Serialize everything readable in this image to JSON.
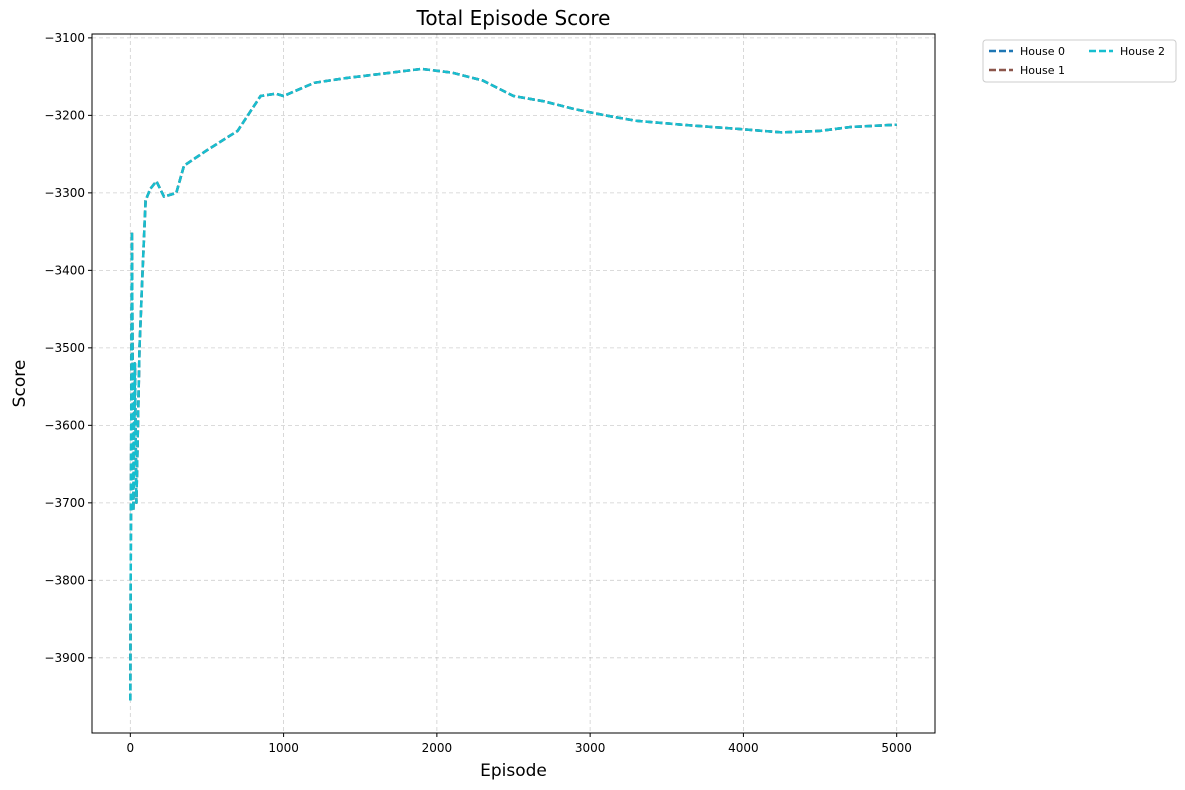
{
  "chart_data": {
    "type": "line",
    "title": "Total Episode Score",
    "xlabel": "Episode",
    "ylabel": "Score",
    "xlim": [
      -250,
      5250
    ],
    "ylim": [
      -3997,
      -3095
    ],
    "x_ticks": [
      0,
      1000,
      2000,
      3000,
      4000,
      5000
    ],
    "y_ticks": [
      -3100,
      -3200,
      -3300,
      -3400,
      -3500,
      -3600,
      -3700,
      -3800,
      -3900
    ],
    "grid": true,
    "legend_position": "outside-top-right",
    "legend_columns": 2,
    "series": [
      {
        "name": "House 0",
        "color": "#1f77b4",
        "points": [
          [
            0,
            -3955
          ],
          [
            10,
            -3350
          ],
          [
            20,
            -3710
          ],
          [
            30,
            -3520
          ],
          [
            40,
            -3700
          ],
          [
            60,
            -3500
          ],
          [
            80,
            -3400
          ],
          [
            100,
            -3310
          ],
          [
            130,
            -3295
          ],
          [
            170,
            -3285
          ],
          [
            220,
            -3305
          ],
          [
            300,
            -3300
          ],
          [
            350,
            -3265
          ],
          [
            500,
            -3245
          ],
          [
            700,
            -3220
          ],
          [
            850,
            -3175
          ],
          [
            950,
            -3172
          ],
          [
            1000,
            -3175
          ],
          [
            1200,
            -3158
          ],
          [
            1400,
            -3152
          ],
          [
            1700,
            -3145
          ],
          [
            1900,
            -3140
          ],
          [
            2100,
            -3145
          ],
          [
            2300,
            -3155
          ],
          [
            2500,
            -3175
          ],
          [
            2700,
            -3182
          ],
          [
            2900,
            -3192
          ],
          [
            3100,
            -3200
          ],
          [
            3300,
            -3207
          ],
          [
            3600,
            -3212
          ],
          [
            4000,
            -3218
          ],
          [
            4250,
            -3222
          ],
          [
            4500,
            -3220
          ],
          [
            4700,
            -3215
          ],
          [
            5000,
            -3212
          ]
        ]
      },
      {
        "name": "House 1",
        "color": "#8c564b",
        "points": [
          [
            0,
            -3955
          ],
          [
            10,
            -3350
          ],
          [
            20,
            -3710
          ],
          [
            30,
            -3520
          ],
          [
            40,
            -3700
          ],
          [
            60,
            -3500
          ],
          [
            80,
            -3400
          ],
          [
            100,
            -3310
          ],
          [
            130,
            -3295
          ],
          [
            170,
            -3285
          ],
          [
            220,
            -3305
          ],
          [
            300,
            -3300
          ],
          [
            350,
            -3265
          ],
          [
            500,
            -3245
          ],
          [
            700,
            -3220
          ],
          [
            850,
            -3175
          ],
          [
            950,
            -3172
          ],
          [
            1000,
            -3175
          ],
          [
            1200,
            -3158
          ],
          [
            1400,
            -3152
          ],
          [
            1700,
            -3145
          ],
          [
            1900,
            -3140
          ],
          [
            2100,
            -3145
          ],
          [
            2300,
            -3155
          ],
          [
            2500,
            -3175
          ],
          [
            2700,
            -3182
          ],
          [
            2900,
            -3192
          ],
          [
            3100,
            -3200
          ],
          [
            3300,
            -3207
          ],
          [
            3600,
            -3212
          ],
          [
            4000,
            -3218
          ],
          [
            4250,
            -3222
          ],
          [
            4500,
            -3220
          ],
          [
            4700,
            -3215
          ],
          [
            5000,
            -3212
          ]
        ]
      },
      {
        "name": "House 2",
        "color": "#17becf",
        "points": [
          [
            0,
            -3955
          ],
          [
            10,
            -3350
          ],
          [
            20,
            -3710
          ],
          [
            30,
            -3520
          ],
          [
            40,
            -3700
          ],
          [
            60,
            -3500
          ],
          [
            80,
            -3400
          ],
          [
            100,
            -3310
          ],
          [
            130,
            -3295
          ],
          [
            170,
            -3285
          ],
          [
            220,
            -3305
          ],
          [
            300,
            -3300
          ],
          [
            350,
            -3265
          ],
          [
            500,
            -3245
          ],
          [
            700,
            -3220
          ],
          [
            850,
            -3175
          ],
          [
            950,
            -3172
          ],
          [
            1000,
            -3175
          ],
          [
            1200,
            -3158
          ],
          [
            1400,
            -3152
          ],
          [
            1700,
            -3145
          ],
          [
            1900,
            -3140
          ],
          [
            2100,
            -3145
          ],
          [
            2300,
            -3155
          ],
          [
            2500,
            -3175
          ],
          [
            2700,
            -3182
          ],
          [
            2900,
            -3192
          ],
          [
            3100,
            -3200
          ],
          [
            3300,
            -3207
          ],
          [
            3600,
            -3212
          ],
          [
            4000,
            -3218
          ],
          [
            4250,
            -3222
          ],
          [
            4500,
            -3220
          ],
          [
            4700,
            -3215
          ],
          [
            5000,
            -3212
          ]
        ]
      }
    ]
  }
}
